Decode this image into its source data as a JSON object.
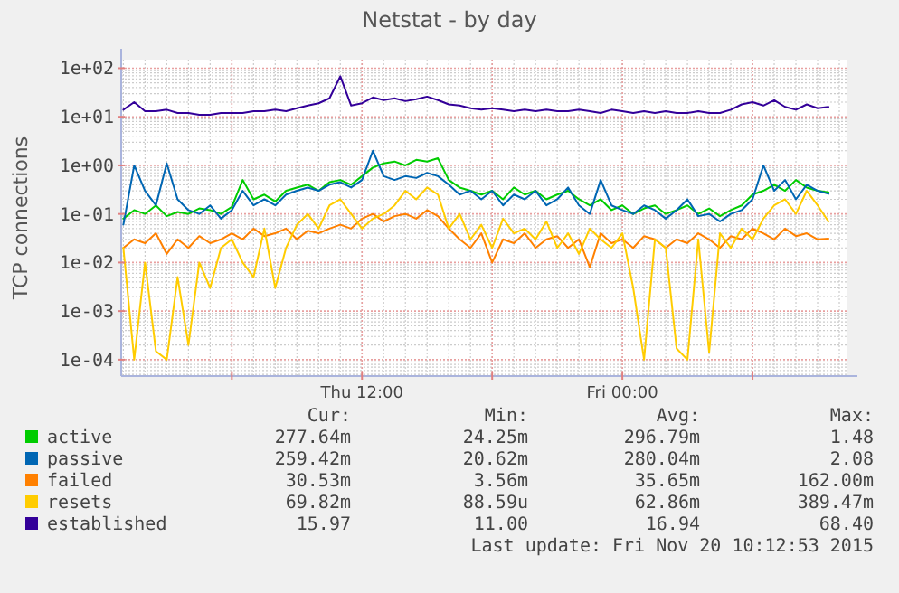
{
  "chart_data": {
    "type": "line",
    "title": "Netstat - by day",
    "ylabel": "TCP connections",
    "x": [
      "2015-11-19T01:00",
      "2015-11-19T01:30",
      "2015-11-19T02:00",
      "2015-11-19T02:30",
      "2015-11-19T03:00",
      "2015-11-19T03:30",
      "2015-11-19T04:00",
      "2015-11-19T04:30",
      "2015-11-19T05:00",
      "2015-11-19T05:30",
      "2015-11-19T06:00",
      "2015-11-19T06:30",
      "2015-11-19T07:00",
      "2015-11-19T07:30",
      "2015-11-19T08:00",
      "2015-11-19T08:30",
      "2015-11-19T09:00",
      "2015-11-19T09:30",
      "2015-11-19T10:00",
      "2015-11-19T10:30",
      "2015-11-19T11:00",
      "2015-11-19T11:30",
      "2015-11-19T12:00",
      "2015-11-19T12:30",
      "2015-11-19T13:00",
      "2015-11-19T13:30",
      "2015-11-19T14:00",
      "2015-11-19T14:30",
      "2015-11-19T15:00",
      "2015-11-19T15:30",
      "2015-11-19T16:00",
      "2015-11-19T16:30",
      "2015-11-19T17:00",
      "2015-11-19T17:30",
      "2015-11-19T18:00",
      "2015-11-19T18:30",
      "2015-11-19T19:00",
      "2015-11-19T19:30",
      "2015-11-19T20:00",
      "2015-11-19T20:30",
      "2015-11-19T21:00",
      "2015-11-19T21:30",
      "2015-11-19T22:00",
      "2015-11-19T22:30",
      "2015-11-19T23:00",
      "2015-11-19T23:30",
      "2015-11-20T00:00",
      "2015-11-20T00:30",
      "2015-11-20T01:00",
      "2015-11-20T01:30",
      "2015-11-20T02:00",
      "2015-11-20T02:30",
      "2015-11-20T03:00",
      "2015-11-20T03:30",
      "2015-11-20T04:00",
      "2015-11-20T04:30",
      "2015-11-20T05:00",
      "2015-11-20T05:30",
      "2015-11-20T06:00",
      "2015-11-20T06:30",
      "2015-11-20T07:00",
      "2015-11-20T07:30",
      "2015-11-20T08:00",
      "2015-11-20T08:30",
      "2015-11-20T09:00",
      "2015-11-20T09:30"
    ],
    "series": [
      {
        "name": "active",
        "color": "#00cc00",
        "values": [
          0.08,
          0.12,
          0.1,
          0.15,
          0.09,
          0.11,
          0.1,
          0.13,
          0.12,
          0.1,
          0.14,
          0.5,
          0.2,
          0.25,
          0.18,
          0.3,
          0.35,
          0.4,
          0.3,
          0.45,
          0.5,
          0.4,
          0.6,
          0.9,
          1.1,
          1.2,
          1.0,
          1.3,
          1.2,
          1.4,
          0.5,
          0.35,
          0.3,
          0.25,
          0.3,
          0.2,
          0.35,
          0.25,
          0.3,
          0.2,
          0.25,
          0.3,
          0.2,
          0.15,
          0.2,
          0.12,
          0.15,
          0.1,
          0.13,
          0.15,
          0.1,
          0.12,
          0.15,
          0.1,
          0.13,
          0.09,
          0.12,
          0.15,
          0.25,
          0.3,
          0.4,
          0.3,
          0.5,
          0.35,
          0.3,
          0.28
        ]
      },
      {
        "name": "passive",
        "color": "#0066b3",
        "values": [
          0.06,
          1.0,
          0.3,
          0.15,
          1.1,
          0.2,
          0.12,
          0.1,
          0.15,
          0.08,
          0.12,
          0.3,
          0.15,
          0.2,
          0.15,
          0.25,
          0.3,
          0.35,
          0.3,
          0.4,
          0.45,
          0.35,
          0.5,
          2.0,
          0.6,
          0.5,
          0.6,
          0.55,
          0.7,
          0.6,
          0.4,
          0.25,
          0.3,
          0.2,
          0.3,
          0.15,
          0.25,
          0.2,
          0.3,
          0.15,
          0.2,
          0.35,
          0.15,
          0.1,
          0.5,
          0.15,
          0.12,
          0.1,
          0.15,
          0.12,
          0.08,
          0.12,
          0.2,
          0.09,
          0.1,
          0.07,
          0.1,
          0.12,
          0.2,
          1.0,
          0.3,
          0.5,
          0.2,
          0.4,
          0.3,
          0.26
        ]
      },
      {
        "name": "failed",
        "color": "#ff8000",
        "values": [
          0.02,
          0.03,
          0.025,
          0.04,
          0.015,
          0.03,
          0.02,
          0.035,
          0.025,
          0.03,
          0.04,
          0.03,
          0.05,
          0.035,
          0.04,
          0.05,
          0.03,
          0.045,
          0.04,
          0.05,
          0.06,
          0.05,
          0.08,
          0.1,
          0.07,
          0.09,
          0.1,
          0.08,
          0.12,
          0.09,
          0.05,
          0.03,
          0.02,
          0.04,
          0.01,
          0.03,
          0.025,
          0.04,
          0.02,
          0.03,
          0.035,
          0.02,
          0.03,
          0.008,
          0.04,
          0.025,
          0.03,
          0.02,
          0.035,
          0.03,
          0.02,
          0.03,
          0.025,
          0.04,
          0.03,
          0.02,
          0.035,
          0.03,
          0.05,
          0.04,
          0.03,
          0.05,
          0.035,
          0.04,
          0.03,
          0.031
        ]
      },
      {
        "name": "resets",
        "color": "#ffcc00",
        "values": [
          0.02,
          0.0001,
          0.01,
          0.00015,
          0.0001,
          0.005,
          0.0002,
          0.01,
          0.003,
          0.02,
          0.03,
          0.01,
          0.005,
          0.05,
          0.003,
          0.02,
          0.06,
          0.1,
          0.05,
          0.15,
          0.2,
          0.1,
          0.05,
          0.08,
          0.1,
          0.15,
          0.3,
          0.2,
          0.35,
          0.25,
          0.05,
          0.1,
          0.03,
          0.06,
          0.02,
          0.08,
          0.04,
          0.05,
          0.03,
          0.07,
          0.02,
          0.04,
          0.015,
          0.05,
          0.03,
          0.02,
          0.04,
          0.003,
          0.0001,
          0.03,
          0.02,
          0.00017,
          0.0001,
          0.03,
          0.00014,
          0.04,
          0.02,
          0.05,
          0.03,
          0.08,
          0.15,
          0.2,
          0.1,
          0.3,
          0.15,
          0.07
        ]
      },
      {
        "name": "established",
        "color": "#330099",
        "values": [
          14,
          20,
          13,
          13,
          14,
          12,
          12,
          11,
          11,
          12,
          12,
          12,
          13,
          13,
          14,
          13,
          15,
          17,
          19,
          24,
          68,
          17,
          19,
          25,
          22,
          24,
          21,
          23,
          26,
          22,
          18,
          17,
          15,
          14,
          15,
          14,
          13,
          14,
          13,
          14,
          13,
          13,
          14,
          13,
          12,
          14,
          13,
          12,
          13,
          12,
          13,
          12,
          12,
          13,
          12,
          12,
          14,
          18,
          20,
          17,
          22,
          16,
          14,
          18,
          15,
          16
        ]
      }
    ],
    "log": "y",
    "xlim": [
      "2015-11-19T00:54",
      "2015-11-20T10:20"
    ],
    "ylim": [
      4.6e-05,
      150
    ],
    "xticks": [
      {
        "value": "2015-11-19T06:00",
        "label": null
      },
      {
        "value": "2015-11-19T12:00",
        "label": "Thu 12:00"
      },
      {
        "value": "2015-11-19T18:00",
        "label": null
      },
      {
        "value": "2015-11-20T00:00",
        "label": "Fri 00:00"
      },
      {
        "value": "2015-11-20T06:00",
        "label": null
      }
    ],
    "yticks": [
      {
        "value": 0.0001,
        "label": "1e-04"
      },
      {
        "value": 0.001,
        "label": "1e-03"
      },
      {
        "value": 0.01,
        "label": "1e-02"
      },
      {
        "value": 0.1,
        "label": "1e-01"
      },
      {
        "value": 1,
        "label": "1e+00"
      },
      {
        "value": 10,
        "label": "1e+01"
      },
      {
        "value": 100,
        "label": "1e+02"
      }
    ],
    "grid": true,
    "legend": "bottom",
    "marker": "none",
    "line_style": "solid",
    "annotations": [
      "Cur:",
      "Min:",
      "Avg:",
      "Max:",
      "277.64m",
      "24.25m",
      "296.79m",
      "1.48",
      "259.42m",
      "20.62m",
      "280.04m",
      "2.08",
      "30.53m",
      "3.56m",
      "35.65m",
      "162.00m",
      "69.82m",
      "88.59u",
      "62.86m",
      "389.47m",
      "15.97",
      "11.00",
      "16.94",
      "68.40",
      "Last update: Fri Nov 20 10:12:53 2015"
    ]
  }
}
